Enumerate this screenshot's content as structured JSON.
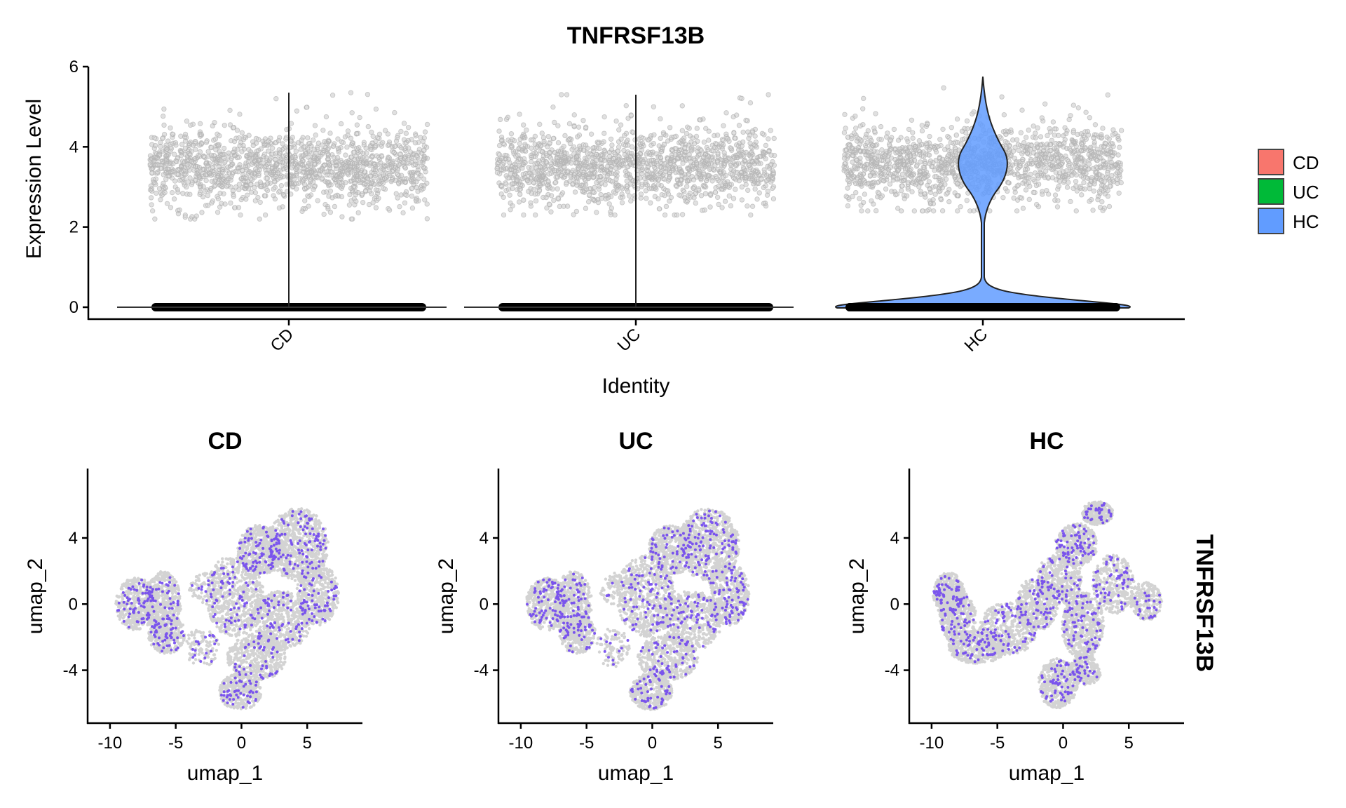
{
  "chart_data": [
    {
      "type": "violin",
      "title": "TNFRSF13B",
      "xlabel": "Identity",
      "ylabel": "Expression Level",
      "categories": [
        "CD",
        "UC",
        "HC"
      ],
      "yticks": [
        0,
        2,
        4,
        6
      ],
      "ylim": [
        -0.3,
        6
      ],
      "groups": [
        {
          "name": "CD",
          "color": "#F8766D",
          "zero_fraction_dominant": true,
          "expressed_range": [
            2.2,
            5.3
          ],
          "expressed_center": 3.5,
          "max": 5.35,
          "violin_visible": false
        },
        {
          "name": "UC",
          "color": "#00BA38",
          "zero_fraction_dominant": true,
          "expressed_range": [
            2.3,
            5.2
          ],
          "expressed_center": 3.5,
          "max": 5.3,
          "violin_visible": false
        },
        {
          "name": "HC",
          "color": "#619CFF",
          "zero_fraction_dominant": true,
          "expressed_range": [
            2.4,
            5.7
          ],
          "expressed_center": 3.6,
          "max": 5.75,
          "violin_visible": true
        }
      ],
      "legend": {
        "position": "right",
        "entries": [
          {
            "label": "CD",
            "color": "#F8766D"
          },
          {
            "label": "UC",
            "color": "#00BA38"
          },
          {
            "label": "HC",
            "color": "#619CFF"
          }
        ]
      }
    },
    {
      "type": "scatter",
      "subtype": "umap-feature-plot",
      "feature": "TNFRSF13B",
      "panels": [
        {
          "title": "CD",
          "xlabel": "umap_1",
          "ylabel": "umap_2"
        },
        {
          "title": "UC",
          "xlabel": "umap_1",
          "ylabel": "umap_2"
        },
        {
          "title": "HC",
          "xlabel": "umap_1",
          "ylabel": "umap_2"
        }
      ],
      "xticks": [
        -10,
        -5,
        0,
        5
      ],
      "yticks": [
        -4,
        0,
        4
      ],
      "xlim": [
        -11.7,
        9.2
      ],
      "ylim": [
        -7.2,
        8.2
      ],
      "low_color": "#D3D3D3",
      "high_color": "#6A3DF0"
    }
  ],
  "strip_label": "TNFRSF13B"
}
